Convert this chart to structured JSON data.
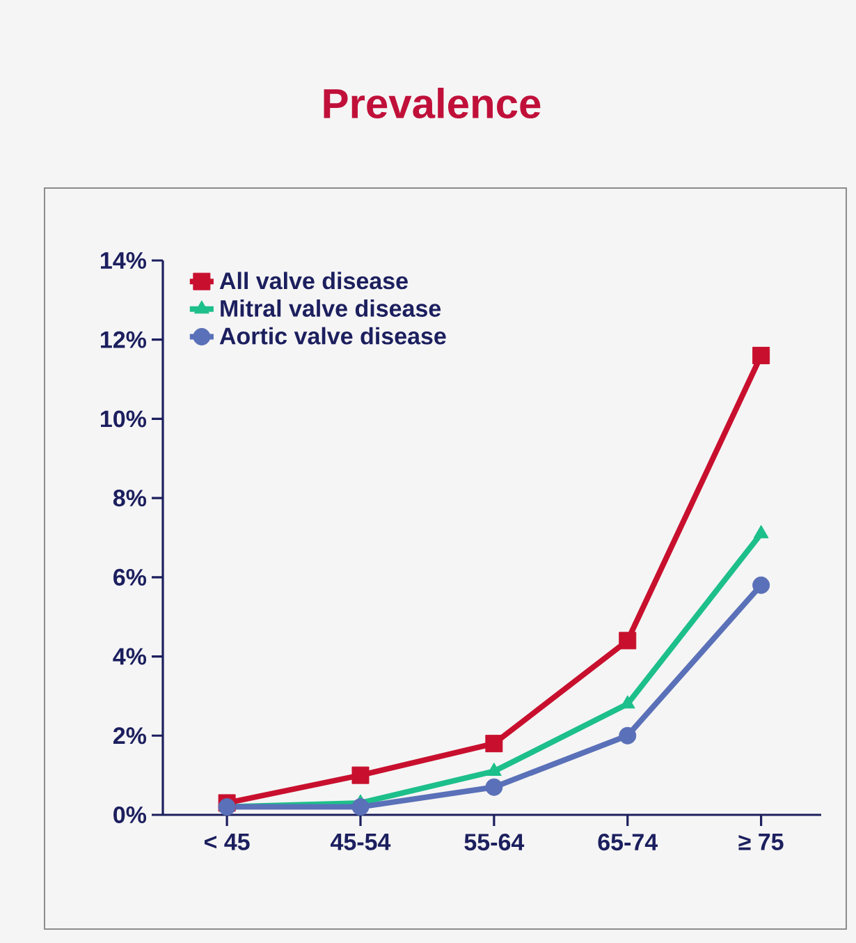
{
  "chart_data": {
    "type": "line",
    "title": "Prevalence",
    "categories": [
      "< 45",
      "45-54",
      "55-64",
      "65-74",
      "≥ 75"
    ],
    "series": [
      {
        "name": "All valve disease",
        "color": "#c8102e",
        "marker": "square",
        "values": [
          0.3,
          1.0,
          1.8,
          4.4,
          11.6
        ]
      },
      {
        "name": "Mitral valve disease",
        "color": "#1dbf8a",
        "marker": "triangle",
        "values": [
          0.2,
          0.3,
          1.1,
          2.8,
          7.1
        ]
      },
      {
        "name": "Aortic valve disease",
        "color": "#5a70b8",
        "marker": "circle",
        "values": [
          0.2,
          0.2,
          0.7,
          2.0,
          5.8
        ]
      }
    ],
    "ylim": [
      0,
      14
    ],
    "yticks": [
      {
        "value": 0,
        "label": "0%"
      },
      {
        "value": 2,
        "label": "2%"
      },
      {
        "value": 4,
        "label": "4%"
      },
      {
        "value": 6,
        "label": "6%"
      },
      {
        "value": 8,
        "label": "8%"
      },
      {
        "value": 10,
        "label": "10%"
      },
      {
        "value": 12,
        "label": "12%"
      },
      {
        "value": 14,
        "label": "14%"
      }
    ],
    "grid": false,
    "legend": "top left",
    "line_style": "solid"
  }
}
